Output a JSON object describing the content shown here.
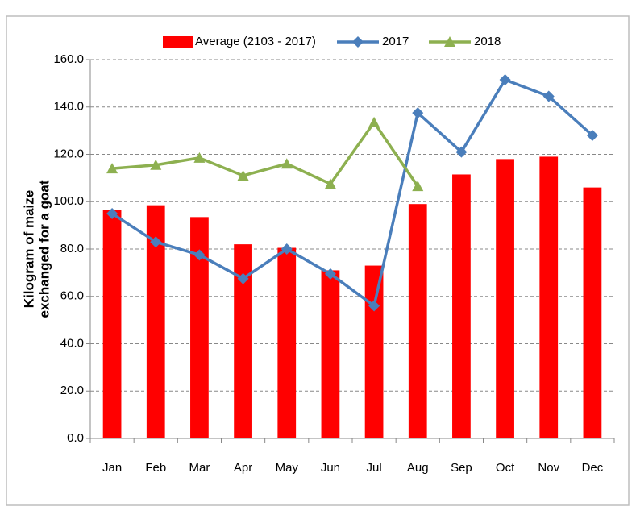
{
  "chart_data": {
    "type": "bar_line",
    "y_label": [
      "Kilogram of maize",
      "exchanged for a goat"
    ],
    "categories": [
      "Jan",
      "Feb",
      "Mar",
      "Apr",
      "May",
      "Jun",
      "Jul",
      "Aug",
      "Sep",
      "Oct",
      "Nov",
      "Dec"
    ],
    "series": [
      {
        "name": "Average (2103 - 2017)",
        "type": "bar",
        "color": "#ff0000",
        "values": [
          96.5,
          98.5,
          93.5,
          82,
          80.5,
          71,
          73,
          99,
          111.5,
          118,
          119,
          106
        ]
      },
      {
        "name": "2017",
        "type": "line",
        "marker": "diamond",
        "color": "#4a7ebb",
        "values": [
          95,
          83,
          77.5,
          67.5,
          80,
          69.5,
          56,
          137.5,
          121,
          151.5,
          144.5,
          128
        ]
      },
      {
        "name": "2018",
        "type": "line",
        "marker": "triangle",
        "color": "#8db050",
        "values": [
          114,
          115.5,
          118.5,
          111,
          116,
          107.5,
          133.5,
          106.5,
          null,
          null,
          null,
          null
        ]
      }
    ],
    "ylim": [
      0,
      160
    ],
    "yticks": [
      {
        "value": 0,
        "label": "0.0"
      },
      {
        "value": 20,
        "label": "20.0"
      },
      {
        "value": 40,
        "label": "40.0"
      },
      {
        "value": 60,
        "label": "60.0"
      },
      {
        "value": 80,
        "label": "80.0"
      },
      {
        "value": 100,
        "label": "100.0"
      },
      {
        "value": 120,
        "label": "120.0"
      },
      {
        "value": 140,
        "label": "140.0"
      },
      {
        "value": 160,
        "label": "160.0"
      }
    ],
    "grid": true,
    "legend": "top"
  }
}
